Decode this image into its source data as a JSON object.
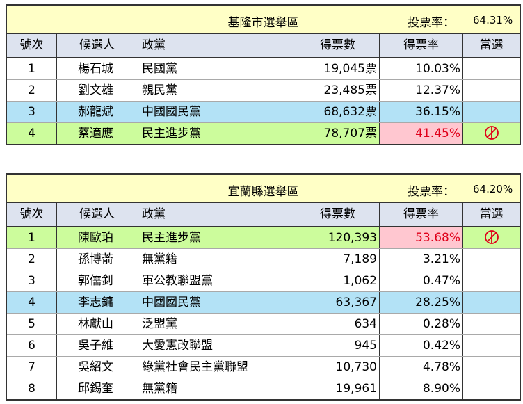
{
  "columns": {
    "no": "號次",
    "name": "候選人",
    "party": "政黨",
    "votes": "得票數",
    "pct": "得票率",
    "elected": "當選"
  },
  "district1": {
    "title": "基隆市選舉區",
    "turnout_label": "投票率：",
    "turnout_value": "64.31%",
    "rows": [
      {
        "no": "1",
        "name": "楊石城",
        "party": "民國黨",
        "votes": "19,045票",
        "pct": "10.03%"
      },
      {
        "no": "2",
        "name": "劉文雄",
        "party": "親民黨",
        "votes": "23,485票",
        "pct": "12.37%"
      },
      {
        "no": "3",
        "name": "郝龍斌",
        "party": "中國國民黨",
        "votes": "68,632票",
        "pct": "36.15%"
      },
      {
        "no": "4",
        "name": "蔡適應",
        "party": "民主進步黨",
        "votes": "78,707票",
        "pct": "41.45%",
        "elected_icon": "elected-mark-icon"
      }
    ]
  },
  "district2": {
    "title": "宜蘭縣選舉區",
    "turnout_label": "投票率：",
    "turnout_value": "64.20%",
    "rows": [
      {
        "no": "1",
        "name": "陳歐珀",
        "party": "民主進步黨",
        "votes": "120,393",
        "pct": "53.68%",
        "elected_icon": "elected-mark-icon"
      },
      {
        "no": "2",
        "name": "孫博萮",
        "party": "無黨籍",
        "votes": "7,189",
        "pct": "3.21%"
      },
      {
        "no": "3",
        "name": "郭儒釗",
        "party": "軍公教聯盟黨",
        "votes": "1,062",
        "pct": "0.47%"
      },
      {
        "no": "4",
        "name": "李志鏞",
        "party": "中國國民黨",
        "votes": "63,367",
        "pct": "28.25%"
      },
      {
        "no": "5",
        "name": "林獻山",
        "party": "泛盟黨",
        "votes": "634",
        "pct": "0.28%"
      },
      {
        "no": "6",
        "name": "吳子維",
        "party": "大愛憲改聯盟",
        "votes": "945",
        "pct": "0.42%"
      },
      {
        "no": "7",
        "name": "吳紹文",
        "party": "綠黨社會民主黨聯盟",
        "votes": "10,730",
        "pct": "4.78%"
      },
      {
        "no": "8",
        "name": "邱錫奎",
        "party": "無黨籍",
        "votes": "19,961",
        "pct": "8.90%"
      }
    ]
  },
  "colors": {
    "title_bg": "#ffffc6",
    "header_bg": "#dde3ef",
    "kmt_row": "#b3e2f6",
    "dpp_row": "#ccfc9c",
    "winner_pct_bg": "#ffc7d0",
    "winner_text": "#e0001a"
  }
}
